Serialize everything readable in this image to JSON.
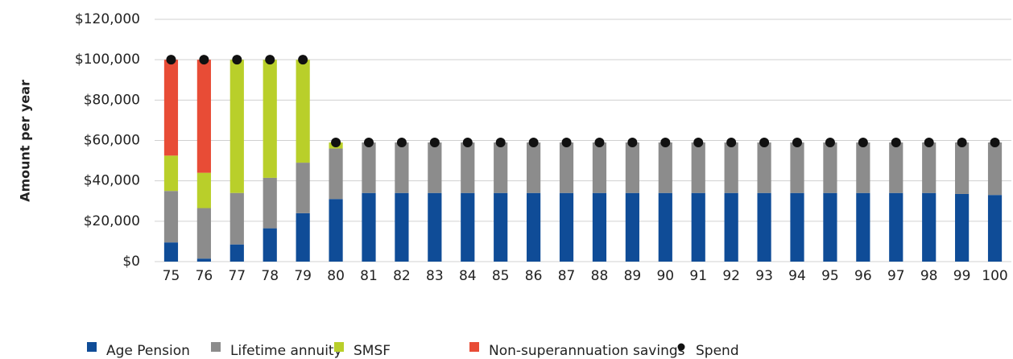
{
  "chart_data": {
    "type": "bar",
    "stacked": true,
    "y_label": "Amount per year",
    "categories": [
      "75",
      "76",
      "77",
      "78",
      "79",
      "80",
      "81",
      "82",
      "83",
      "84",
      "85",
      "86",
      "87",
      "88",
      "89",
      "90",
      "91",
      "92",
      "93",
      "94",
      "95",
      "96",
      "97",
      "98",
      "99",
      "100"
    ],
    "series": [
      {
        "name": "Age Pension",
        "color": "#0f4c97",
        "values": [
          9500,
          1500,
          8500,
          16500,
          24000,
          31000,
          34000,
          34000,
          34000,
          34000,
          34000,
          34000,
          34000,
          34000,
          34000,
          34000,
          34000,
          34000,
          34000,
          34000,
          34000,
          34000,
          34000,
          34000,
          33500,
          33000
        ]
      },
      {
        "name": "Lifetime annuity",
        "color": "#8c8c8c",
        "values": [
          25500,
          25000,
          25500,
          25000,
          25000,
          25000,
          25000,
          25000,
          25000,
          25000,
          25000,
          25000,
          25000,
          25000,
          25000,
          25000,
          25000,
          25000,
          25000,
          25000,
          25000,
          25000,
          25000,
          25000,
          25500,
          26000
        ]
      },
      {
        "name": "SMSF",
        "color": "#b9cf2a",
        "values": [
          17500,
          17500,
          66000,
          58500,
          51000,
          3000,
          0,
          0,
          0,
          0,
          0,
          0,
          0,
          0,
          0,
          0,
          0,
          0,
          0,
          0,
          0,
          0,
          0,
          0,
          0,
          0
        ]
      },
      {
        "name": "Non-superannuation savings",
        "color": "#e84c36",
        "values": [
          47500,
          56000,
          0,
          0,
          0,
          0,
          0,
          0,
          0,
          0,
          0,
          0,
          0,
          0,
          0,
          0,
          0,
          0,
          0,
          0,
          0,
          0,
          0,
          0,
          0,
          0
        ]
      },
      {
        "name": "Spend",
        "color": "#111111",
        "kind": "point",
        "values": [
          100000,
          100000,
          100000,
          100000,
          100000,
          59000,
          59000,
          59000,
          59000,
          59000,
          59000,
          59000,
          59000,
          59000,
          59000,
          59000,
          59000,
          59000,
          59000,
          59000,
          59000,
          59000,
          59000,
          59000,
          59000,
          59000
        ]
      }
    ],
    "ylim": [
      0,
      120000
    ],
    "yticks": [
      {
        "value": 0,
        "label": "$0"
      },
      {
        "value": 20000,
        "label": "$20,000"
      },
      {
        "value": 40000,
        "label": "$40,000"
      },
      {
        "value": 60000,
        "label": "$60,000"
      },
      {
        "value": 80000,
        "label": "$80,000"
      },
      {
        "value": 100000,
        "label": "$100,000"
      },
      {
        "value": 120000,
        "label": "$120,000"
      }
    ],
    "grid": true,
    "legend": "bottom"
  }
}
